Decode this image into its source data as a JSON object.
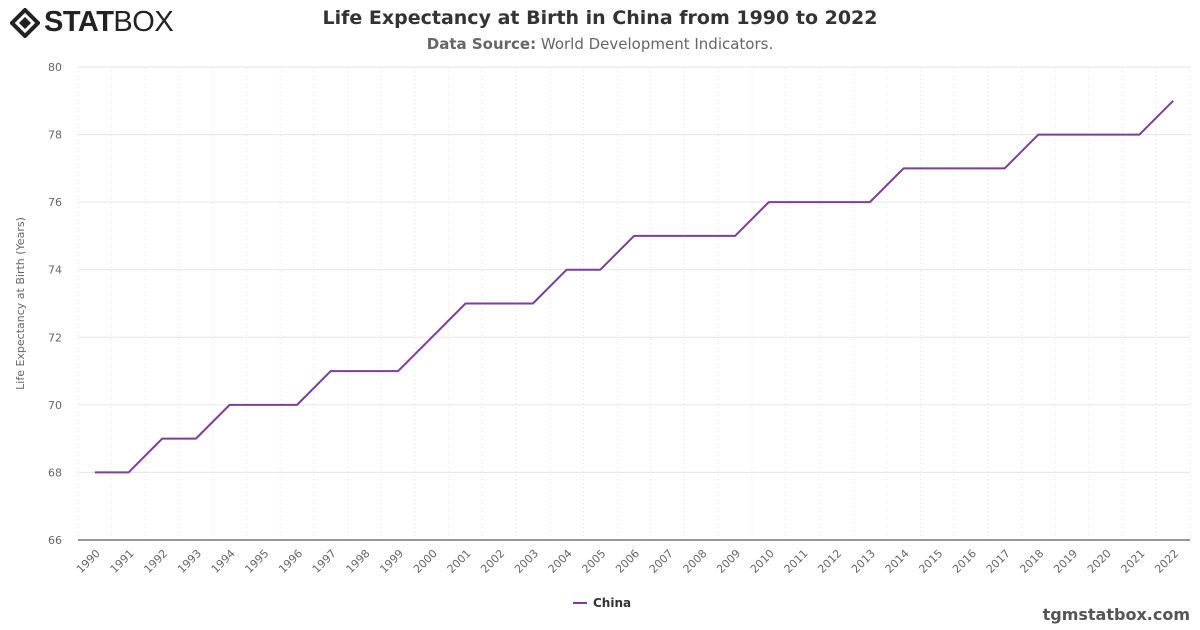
{
  "logo": {
    "bold": "STAT",
    "light": "BOX"
  },
  "header": {
    "title": "Life Expectancy at Birth in China from 1990 to 2022",
    "source_label": "Data Source:",
    "source_value": " World Development Indicators."
  },
  "watermark": "tgmstatbox.com",
  "colors": {
    "series": "#7b3f98"
  },
  "chart_data": {
    "type": "line",
    "title": "Life Expectancy at Birth in China from 1990 to 2022",
    "ylabel": "Life Expectancy at Birth (Years)",
    "xlabel": "",
    "ylim": [
      66,
      80
    ],
    "yticks": [
      66,
      68,
      70,
      72,
      74,
      76,
      78,
      80
    ],
    "grid": true,
    "legend_position": "bottom",
    "categories": [
      "1990",
      "1991",
      "1992",
      "1993",
      "1994",
      "1995",
      "1996",
      "1997",
      "1998",
      "1999",
      "2000",
      "2001",
      "2002",
      "2003",
      "2004",
      "2005",
      "2006",
      "2007",
      "2008",
      "2009",
      "2010",
      "2011",
      "2012",
      "2013",
      "2014",
      "2015",
      "2016",
      "2017",
      "2018",
      "2019",
      "2020",
      "2021",
      "2022"
    ],
    "series": [
      {
        "name": "China",
        "values": [
          68,
          68,
          69,
          69,
          70,
          70,
          70,
          71,
          71,
          71,
          72,
          73,
          73,
          73,
          74,
          74,
          75,
          75,
          75,
          75,
          76,
          76,
          76,
          76,
          77,
          77,
          77,
          77,
          78,
          78,
          78,
          78,
          79
        ]
      }
    ]
  }
}
